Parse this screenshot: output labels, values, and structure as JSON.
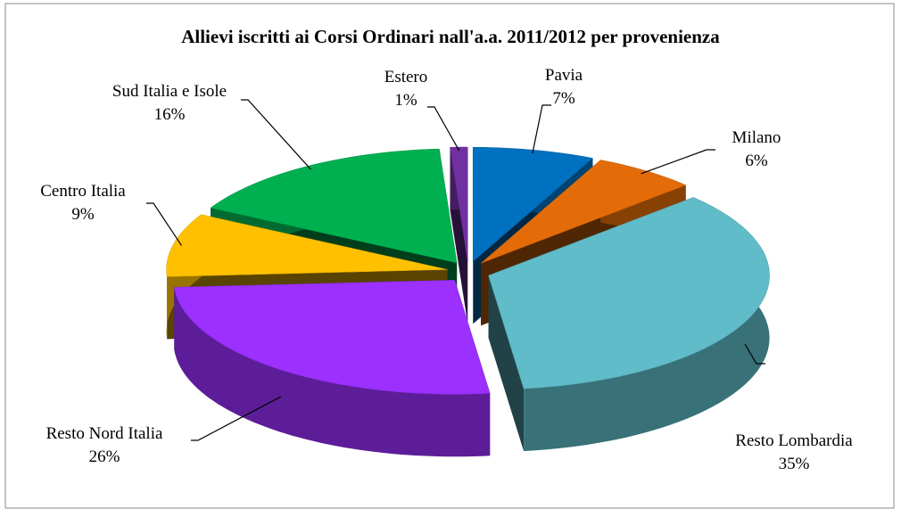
{
  "chart_data": {
    "type": "pie3d",
    "title": "Allievi iscritti ai Corsi Ordinari nall'a.a. 2011/2012 per provenienza",
    "categories": [
      "Pavia",
      "Milano",
      "Resto Lombardia",
      "Resto Nord Italia",
      "Centro Italia",
      "Sud Italia e Isole",
      "Estero"
    ],
    "values": [
      7,
      6,
      35,
      26,
      9,
      16,
      1
    ],
    "value_labels": [
      "7%",
      "6%",
      "35%",
      "26%",
      "9%",
      "16%",
      "1%"
    ],
    "colors": [
      "#0070c0",
      "#e36c09",
      "#5fbcc8",
      "#9b30ff",
      "#ffc000",
      "#00b050",
      "#7030a0"
    ]
  }
}
